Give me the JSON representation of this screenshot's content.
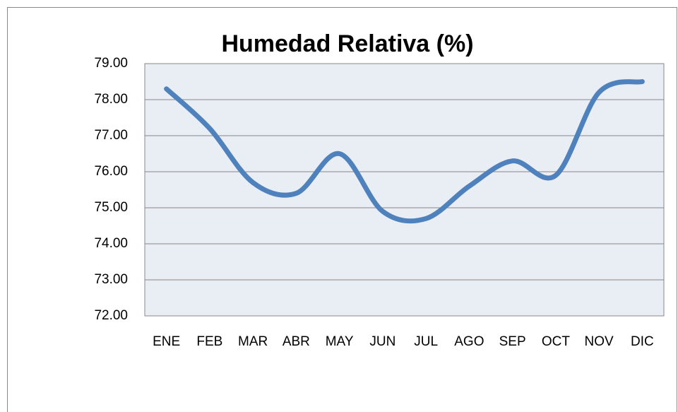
{
  "chart_data": {
    "type": "line",
    "title": "Humedad Relativa (%)",
    "categories": [
      "ENE",
      "FEB",
      "MAR",
      "ABR",
      "MAY",
      "JUN",
      "JUL",
      "AGO",
      "SEP",
      "OCT",
      "NOV",
      "DIC"
    ],
    "series": [
      {
        "name": "Humedad Relativa (%)",
        "color": "#4f81bd",
        "values": [
          78.3,
          77.2,
          75.7,
          75.4,
          76.5,
          74.9,
          74.7,
          75.6,
          76.3,
          75.9,
          78.2,
          78.5
        ]
      }
    ],
    "ylim": [
      72,
      79
    ],
    "yticks": [
      {
        "value": 72,
        "label": "72.00"
      },
      {
        "value": 73,
        "label": "73.00"
      },
      {
        "value": 74,
        "label": "74.00"
      },
      {
        "value": 75,
        "label": "75.00"
      },
      {
        "value": 76,
        "label": "76.00"
      },
      {
        "value": 77,
        "label": "77.00"
      },
      {
        "value": 78,
        "label": "78.00"
      },
      {
        "value": 79,
        "label": "79.00"
      }
    ],
    "grid": true,
    "smooth": true
  }
}
